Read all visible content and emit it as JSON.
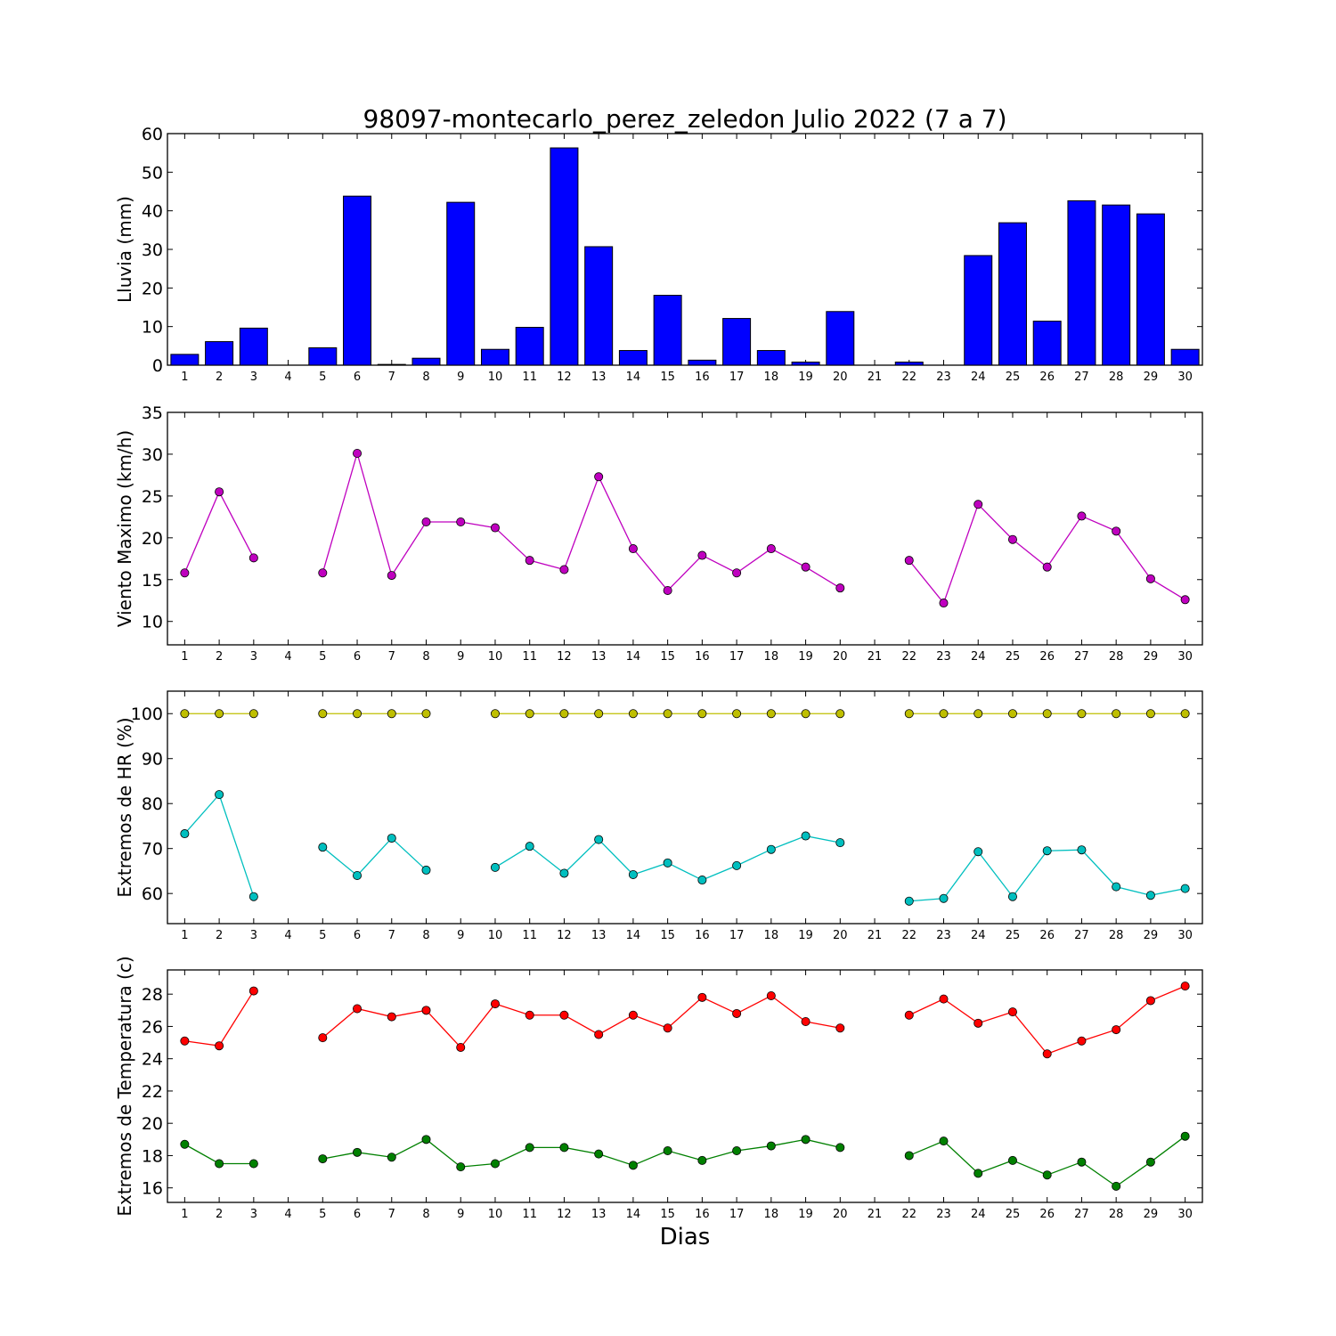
{
  "figure_title": "98097-montecarlo_perez_zeledon Julio 2022  (7 a 7)",
  "x_axis_label": "Dias",
  "colors": {
    "rain_bar": "#0000ff",
    "wind": "#bf00bf",
    "hr_max": "#bfbf00",
    "hr_min": "#00bfbf",
    "temp_max": "#ff0000",
    "temp_min": "#008000"
  },
  "chart_data": [
    {
      "type": "bar",
      "ylabel": "Lluvia (mm)",
      "ylim": [
        0,
        60
      ],
      "yticks": [
        0,
        10,
        20,
        30,
        40,
        50,
        60
      ],
      "categories": [
        1,
        2,
        3,
        4,
        5,
        6,
        7,
        8,
        9,
        10,
        11,
        12,
        13,
        14,
        15,
        16,
        17,
        18,
        19,
        20,
        21,
        22,
        23,
        24,
        25,
        26,
        27,
        28,
        29,
        30
      ],
      "series": [
        {
          "color": "#0000ff",
          "values": [
            2.8,
            6.1,
            9.6,
            0,
            4.5,
            43.8,
            0.2,
            1.8,
            42.2,
            4.1,
            9.8,
            56.3,
            30.7,
            3.8,
            18.1,
            1.3,
            12.1,
            3.8,
            0.8,
            13.9,
            0,
            0.8,
            0,
            28.4,
            36.9,
            11.4,
            42.6,
            41.5,
            39.2,
            4.1
          ]
        }
      ]
    },
    {
      "type": "line",
      "ylabel": "Viento Maximo (km/h)",
      "ylim": [
        7.2,
        35
      ],
      "yticks": [
        10,
        15,
        20,
        25,
        30,
        35
      ],
      "categories": [
        1,
        2,
        3,
        4,
        5,
        6,
        7,
        8,
        9,
        10,
        11,
        12,
        13,
        14,
        15,
        16,
        17,
        18,
        19,
        20,
        21,
        22,
        23,
        24,
        25,
        26,
        27,
        28,
        29,
        30
      ],
      "series": [
        {
          "color": "#bf00bf",
          "values": [
            15.8,
            25.5,
            17.6,
            null,
            15.8,
            30.1,
            15.5,
            21.9,
            21.9,
            21.2,
            17.3,
            16.2,
            27.3,
            18.7,
            13.7,
            17.9,
            15.8,
            18.7,
            16.5,
            14.0,
            null,
            17.3,
            12.2,
            24.0,
            19.8,
            16.5,
            22.6,
            20.8,
            15.1,
            12.6
          ]
        }
      ]
    },
    {
      "type": "line",
      "ylabel": "Extremos de HR (%)",
      "ylim": [
        53.3,
        105
      ],
      "yticks": [
        60,
        70,
        80,
        90,
        100
      ],
      "categories": [
        1,
        2,
        3,
        4,
        5,
        6,
        7,
        8,
        9,
        10,
        11,
        12,
        13,
        14,
        15,
        16,
        17,
        18,
        19,
        20,
        21,
        22,
        23,
        24,
        25,
        26,
        27,
        28,
        29,
        30
      ],
      "series": [
        {
          "color": "#bfbf00",
          "values": [
            100,
            100,
            100,
            null,
            100,
            100,
            100,
            100,
            null,
            100,
            100,
            100,
            100,
            100,
            100,
            100,
            100,
            100,
            100,
            100,
            null,
            100,
            100,
            100,
            100,
            100,
            100,
            100,
            100,
            100
          ]
        },
        {
          "color": "#00bfbf",
          "values": [
            73.3,
            82.0,
            59.3,
            null,
            70.3,
            64.0,
            72.3,
            65.2,
            null,
            65.8,
            70.5,
            64.5,
            72.0,
            64.2,
            66.8,
            63.0,
            66.2,
            69.8,
            72.8,
            71.3,
            null,
            58.3,
            58.9,
            69.3,
            59.3,
            69.5,
            69.7,
            61.5,
            59.6,
            61.1
          ]
        }
      ]
    },
    {
      "type": "line",
      "ylabel": "Extremos de Temperatura (c)",
      "ylim": [
        15.1,
        29.5
      ],
      "yticks": [
        16,
        18,
        20,
        22,
        24,
        26,
        28
      ],
      "categories": [
        1,
        2,
        3,
        4,
        5,
        6,
        7,
        8,
        9,
        10,
        11,
        12,
        13,
        14,
        15,
        16,
        17,
        18,
        19,
        20,
        21,
        22,
        23,
        24,
        25,
        26,
        27,
        28,
        29,
        30
      ],
      "series": [
        {
          "color": "#ff0000",
          "values": [
            25.1,
            24.8,
            28.2,
            null,
            25.3,
            27.1,
            26.6,
            27.0,
            24.7,
            27.4,
            26.7,
            26.7,
            25.5,
            26.7,
            25.9,
            27.8,
            26.8,
            27.9,
            26.3,
            25.9,
            null,
            26.7,
            27.7,
            26.2,
            26.9,
            24.3,
            25.1,
            25.8,
            27.6,
            28.5
          ]
        },
        {
          "color": "#008000",
          "values": [
            18.7,
            17.5,
            17.5,
            null,
            17.8,
            18.2,
            17.9,
            19.0,
            17.3,
            17.5,
            18.5,
            18.5,
            18.1,
            17.4,
            18.3,
            17.7,
            18.3,
            18.6,
            19.0,
            18.5,
            null,
            18.0,
            18.9,
            16.9,
            17.7,
            16.8,
            17.6,
            16.1,
            17.6,
            19.2
          ]
        }
      ]
    }
  ]
}
